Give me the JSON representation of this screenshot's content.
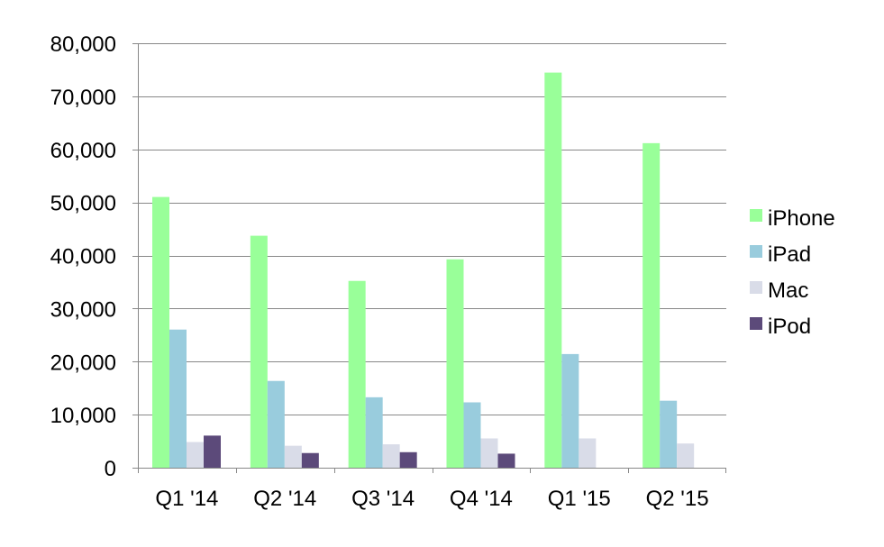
{
  "chart_data": {
    "type": "bar",
    "categories": [
      "Q1 '14",
      "Q2 '14",
      "Q3 '14",
      "Q4 '14",
      "Q1 '15",
      "Q2 '15"
    ],
    "series": [
      {
        "name": "iPhone",
        "color": "#99ff99",
        "values": [
          51025,
          43719,
          35203,
          39272,
          74468,
          61170
        ]
      },
      {
        "name": "iPad",
        "color": "#99ccdd",
        "values": [
          26035,
          16350,
          13276,
          12316,
          21419,
          12623
        ]
      },
      {
        "name": "Mac",
        "color": "#d9dce8",
        "values": [
          4837,
          4136,
          4413,
          5520,
          5519,
          4563
        ]
      },
      {
        "name": "iPod",
        "color": "#5c4a7a",
        "values": [
          6049,
          2761,
          2926,
          2645,
          0,
          0
        ]
      }
    ],
    "ylim": [
      0,
      80000
    ],
    "yticks": [
      0,
      10000,
      20000,
      30000,
      40000,
      50000,
      60000,
      70000,
      80000
    ],
    "ytick_labels": [
      "0",
      "10,000",
      "20,000",
      "30,000",
      "40,000",
      "50,000",
      "60,000",
      "70,000",
      "80,000"
    ],
    "grid": true,
    "legend_position": "right",
    "title": "",
    "xlabel": "",
    "ylabel": ""
  }
}
